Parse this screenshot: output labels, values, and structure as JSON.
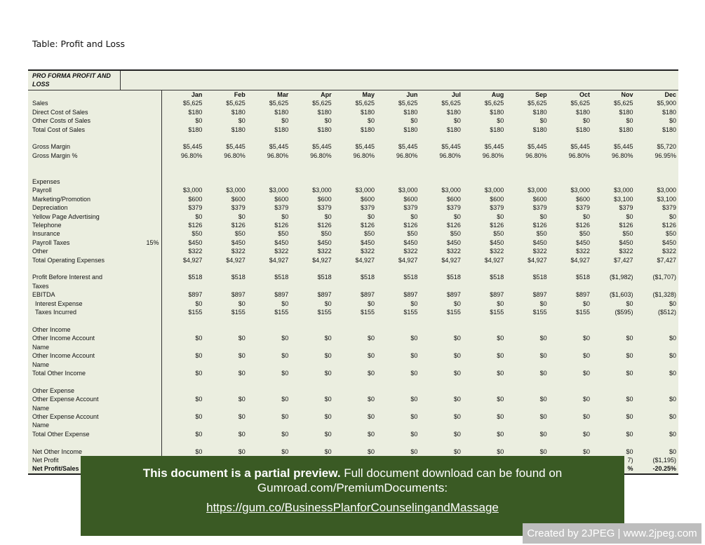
{
  "title": "Table: Profit and Loss",
  "table": {
    "heading": "PRO FORMA PROFIT AND LOSS",
    "months": [
      "Jan",
      "Feb",
      "Mar",
      "Apr",
      "May",
      "Jun",
      "Jul",
      "Aug",
      "Sep",
      "Oct",
      "Nov",
      "Dec"
    ],
    "rows": [
      {
        "label": "Sales",
        "values": [
          "$5,625",
          "$5,625",
          "$5,625",
          "$5,625",
          "$5,625",
          "$5,625",
          "$5,625",
          "$5,625",
          "$5,625",
          "$5,625",
          "$5,625",
          "$5,900"
        ]
      },
      {
        "label": "Direct Cost of Sales",
        "values": [
          "$180",
          "$180",
          "$180",
          "$180",
          "$180",
          "$180",
          "$180",
          "$180",
          "$180",
          "$180",
          "$180",
          "$180"
        ]
      },
      {
        "label": "Other Costs of Sales",
        "values": [
          "$0",
          "$0",
          "$0",
          "$0",
          "$0",
          "$0",
          "$0",
          "$0",
          "$0",
          "$0",
          "$0",
          "$0"
        ]
      },
      {
        "label": "Total Cost of Sales",
        "values": [
          "$180",
          "$180",
          "$180",
          "$180",
          "$180",
          "$180",
          "$180",
          "$180",
          "$180",
          "$180",
          "$180",
          "$180"
        ]
      },
      {
        "blank": true
      },
      {
        "label": "Gross Margin",
        "values": [
          "$5,445",
          "$5,445",
          "$5,445",
          "$5,445",
          "$5,445",
          "$5,445",
          "$5,445",
          "$5,445",
          "$5,445",
          "$5,445",
          "$5,445",
          "$5,720"
        ]
      },
      {
        "label": "Gross Margin %",
        "values": [
          "96.80%",
          "96.80%",
          "96.80%",
          "96.80%",
          "96.80%",
          "96.80%",
          "96.80%",
          "96.80%",
          "96.80%",
          "96.80%",
          "96.80%",
          "96.95%"
        ]
      },
      {
        "blank": true
      },
      {
        "blank": true
      },
      {
        "label": "Expenses"
      },
      {
        "label": "Payroll",
        "values": [
          "$3,000",
          "$3,000",
          "$3,000",
          "$3,000",
          "$3,000",
          "$3,000",
          "$3,000",
          "$3,000",
          "$3,000",
          "$3,000",
          "$3,000",
          "$3,000"
        ]
      },
      {
        "label": "Marketing/Promotion",
        "values": [
          "$600",
          "$600",
          "$600",
          "$600",
          "$600",
          "$600",
          "$600",
          "$600",
          "$600",
          "$600",
          "$3,100",
          "$3,100"
        ]
      },
      {
        "label": "Depreciation",
        "values": [
          "$379",
          "$379",
          "$379",
          "$379",
          "$379",
          "$379",
          "$379",
          "$379",
          "$379",
          "$379",
          "$379",
          "$379"
        ]
      },
      {
        "label": "Yellow Page Advertising",
        "values": [
          "$0",
          "$0",
          "$0",
          "$0",
          "$0",
          "$0",
          "$0",
          "$0",
          "$0",
          "$0",
          "$0",
          "$0"
        ]
      },
      {
        "label": "Telephone",
        "values": [
          "$126",
          "$126",
          "$126",
          "$126",
          "$126",
          "$126",
          "$126",
          "$126",
          "$126",
          "$126",
          "$126",
          "$126"
        ]
      },
      {
        "label": "Insurance",
        "values": [
          "$50",
          "$50",
          "$50",
          "$50",
          "$50",
          "$50",
          "$50",
          "$50",
          "$50",
          "$50",
          "$50",
          "$50"
        ]
      },
      {
        "label": "Payroll Taxes",
        "pct": "15%",
        "values": [
          "$450",
          "$450",
          "$450",
          "$450",
          "$450",
          "$450",
          "$450",
          "$450",
          "$450",
          "$450",
          "$450",
          "$450"
        ]
      },
      {
        "label": "Other",
        "values": [
          "$322",
          "$322",
          "$322",
          "$322",
          "$322",
          "$322",
          "$322",
          "$322",
          "$322",
          "$322",
          "$322",
          "$322"
        ]
      },
      {
        "label": "Total Operating Expenses",
        "values": [
          "$4,927",
          "$4,927",
          "$4,927",
          "$4,927",
          "$4,927",
          "$4,927",
          "$4,927",
          "$4,927",
          "$4,927",
          "$4,927",
          "$7,427",
          "$7,427"
        ]
      },
      {
        "blank": true
      },
      {
        "label": "Profit Before Interest and\nTaxes",
        "values": [
          "$518",
          "$518",
          "$518",
          "$518",
          "$518",
          "$518",
          "$518",
          "$518",
          "$518",
          "$518",
          "($1,982)",
          "($1,707)"
        ]
      },
      {
        "label": "EBITDA",
        "values": [
          "$897",
          "$897",
          "$897",
          "$897",
          "$897",
          "$897",
          "$897",
          "$897",
          "$897",
          "$897",
          "($1,603)",
          "($1,328)"
        ]
      },
      {
        "label": "Interest Expense",
        "indent": true,
        "values": [
          "$0",
          "$0",
          "$0",
          "$0",
          "$0",
          "$0",
          "$0",
          "$0",
          "$0",
          "$0",
          "$0",
          "$0"
        ]
      },
      {
        "label": "Taxes Incurred",
        "indent": true,
        "values": [
          "$155",
          "$155",
          "$155",
          "$155",
          "$155",
          "$155",
          "$155",
          "$155",
          "$155",
          "$155",
          "($595)",
          "($512)"
        ]
      },
      {
        "blank": true
      },
      {
        "label": "Other Income"
      },
      {
        "label": "Other Income Account\nName",
        "values": [
          "$0",
          "$0",
          "$0",
          "$0",
          "$0",
          "$0",
          "$0",
          "$0",
          "$0",
          "$0",
          "$0",
          "$0"
        ]
      },
      {
        "label": "Other Income Account\nName",
        "values": [
          "$0",
          "$0",
          "$0",
          "$0",
          "$0",
          "$0",
          "$0",
          "$0",
          "$0",
          "$0",
          "$0",
          "$0"
        ]
      },
      {
        "label": "Total Other Income",
        "values": [
          "$0",
          "$0",
          "$0",
          "$0",
          "$0",
          "$0",
          "$0",
          "$0",
          "$0",
          "$0",
          "$0",
          "$0"
        ]
      },
      {
        "blank": true
      },
      {
        "label": "Other Expense"
      },
      {
        "label": "Other Expense Account\nName",
        "values": [
          "$0",
          "$0",
          "$0",
          "$0",
          "$0",
          "$0",
          "$0",
          "$0",
          "$0",
          "$0",
          "$0",
          "$0"
        ]
      },
      {
        "label": "Other Expense Account\nName",
        "values": [
          "$0",
          "$0",
          "$0",
          "$0",
          "$0",
          "$0",
          "$0",
          "$0",
          "$0",
          "$0",
          "$0",
          "$0"
        ]
      },
      {
        "label": "Total Other Expense",
        "values": [
          "$0",
          "$0",
          "$0",
          "$0",
          "$0",
          "$0",
          "$0",
          "$0",
          "$0",
          "$0",
          "$0",
          "$0"
        ]
      },
      {
        "blank": true
      },
      {
        "label": "Net Other Income",
        "values": [
          "$0",
          "$0",
          "$0",
          "$0",
          "$0",
          "$0",
          "$0",
          "$0",
          "$0",
          "$0",
          "$0",
          "$0"
        ]
      },
      {
        "label": "Net Profit",
        "values": [
          "",
          "",
          "",
          "",
          "",
          "",
          "",
          "",
          "",
          "",
          "7)",
          "($1,195)"
        ]
      },
      {
        "label": "Net Profit/Sales",
        "bold": true,
        "values": [
          "",
          "",
          "",
          "",
          "",
          "",
          "",
          "",
          "",
          "",
          "%",
          "-20.25%"
        ]
      }
    ]
  },
  "overlay": {
    "bold_text": "This document is a partial preview.",
    "text": " Full document download can be found on Gumroad.com/PremiumDocuments:",
    "link": "https://gum.co/BusinessPlanforCounselingandMassage"
  },
  "credit": "Created by 2JPEG | www.2jpeg.com"
}
